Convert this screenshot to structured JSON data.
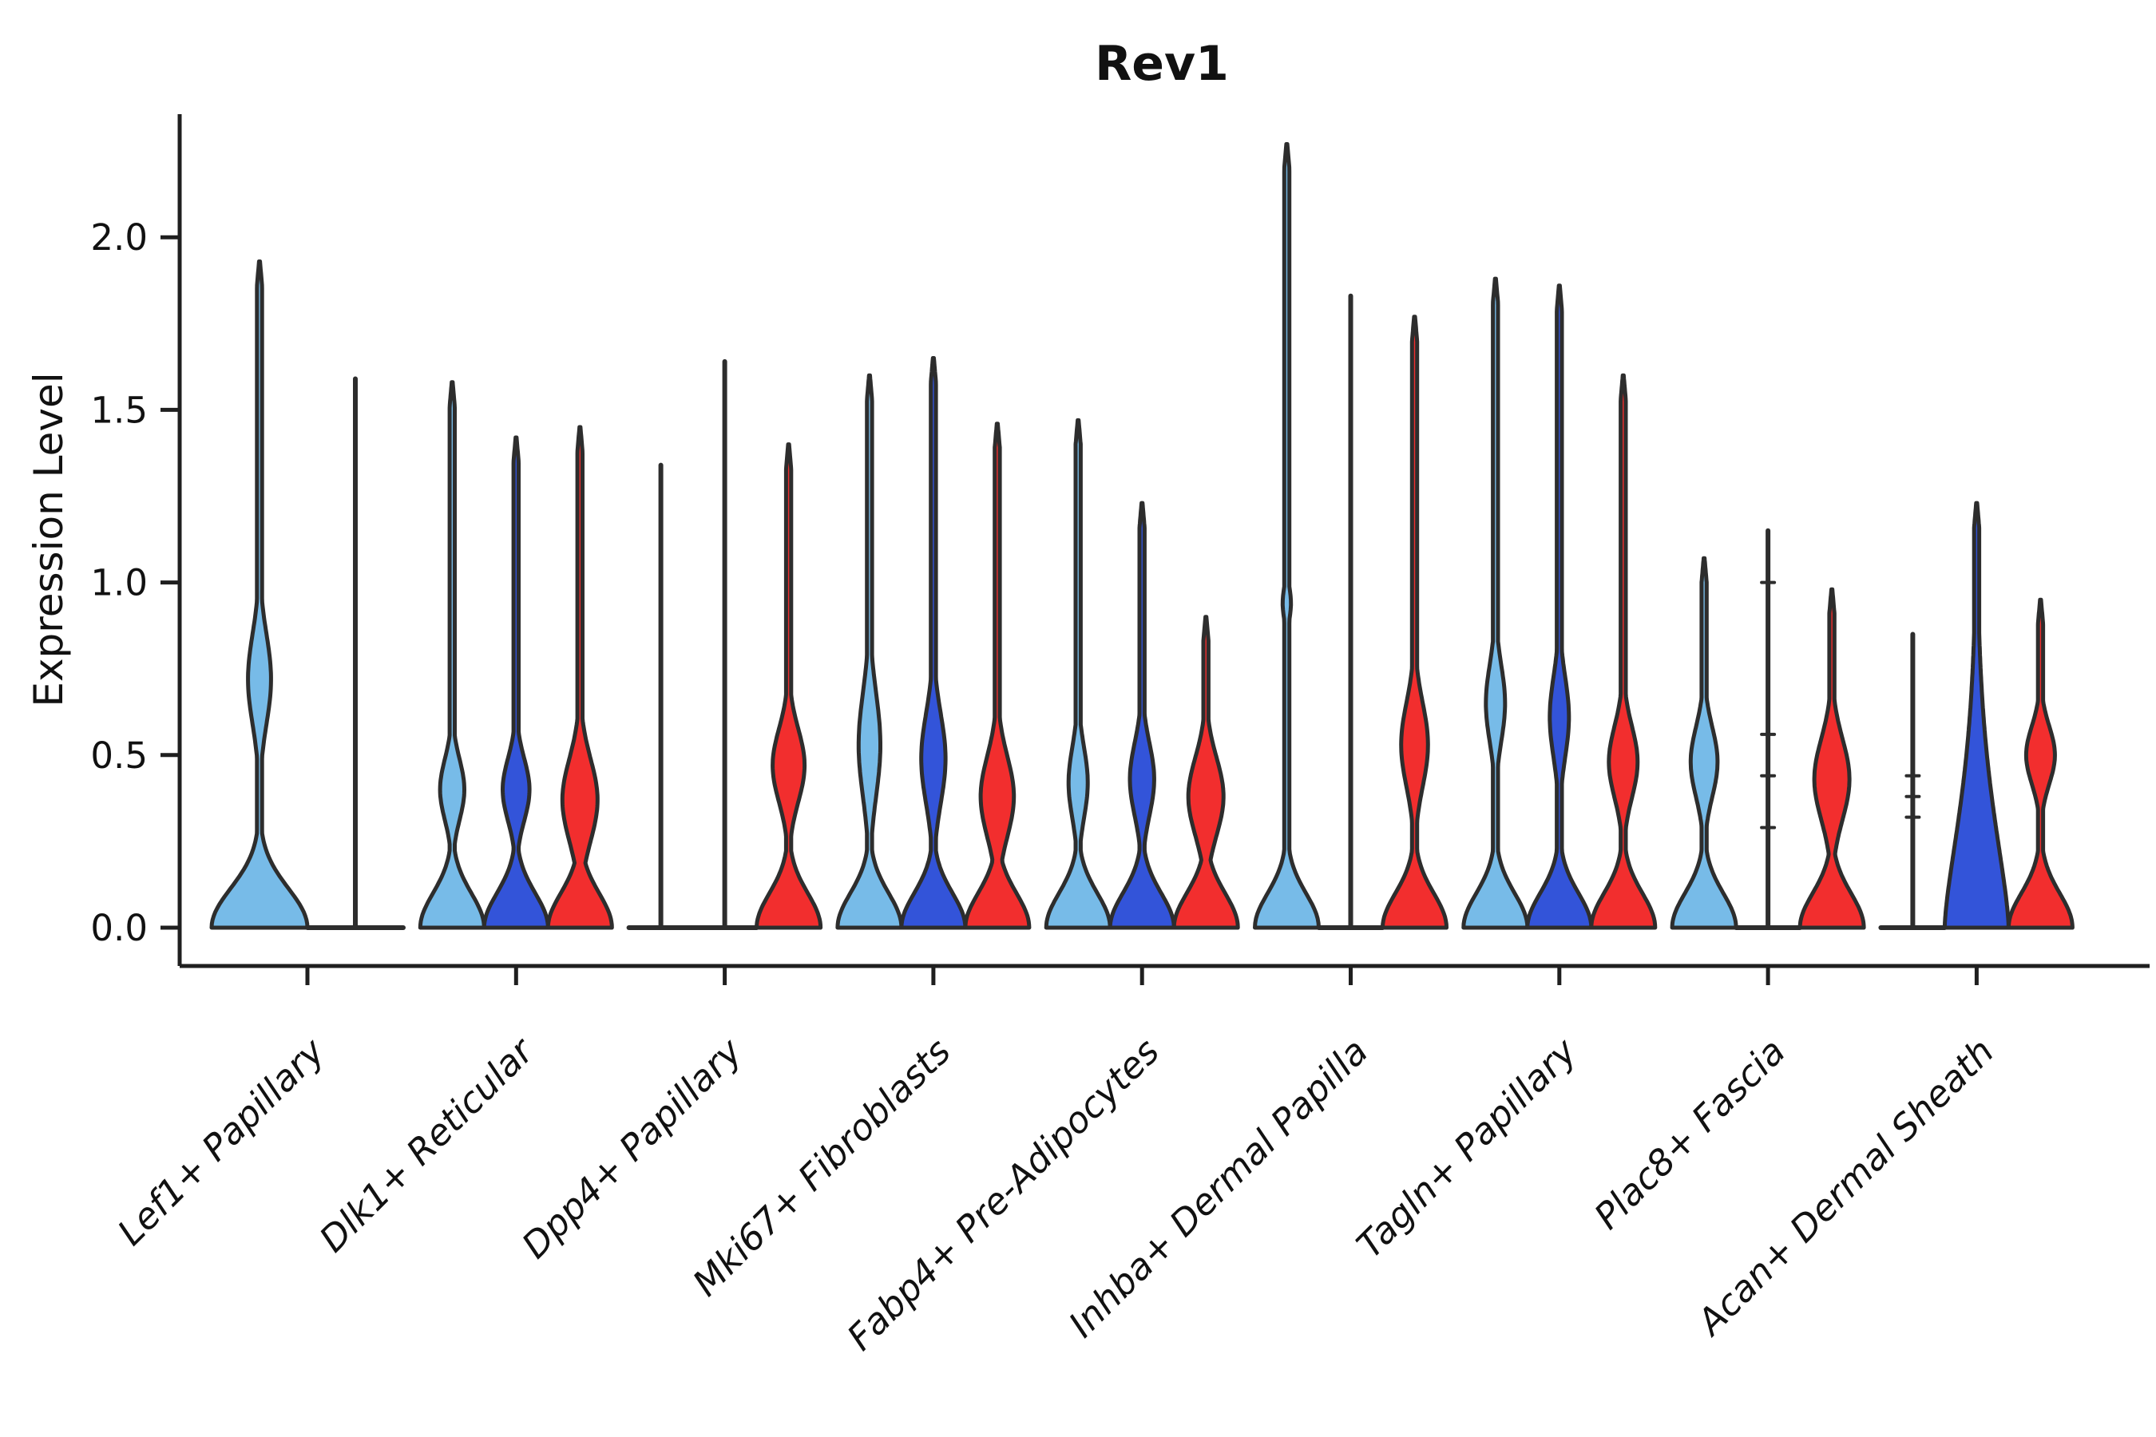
{
  "title": "Rev1",
  "ylabel": "Expression Level",
  "colors": {
    "skyblue": "#77BBE8",
    "royalblue": "#3354D9",
    "red": "#F22E2E",
    "outline": "#2D2D2D",
    "axis": "#1F1F1F",
    "text": "#111111"
  },
  "chart_data": {
    "type": "violin",
    "title": "Rev1",
    "xlabel": "",
    "ylabel": "Expression Level",
    "ylim": [
      -0.06,
      2.36
    ],
    "yticks": [
      "0.0",
      "0.5",
      "1.0",
      "1.5",
      "2.0"
    ],
    "ytick_values": [
      0.0,
      0.5,
      1.0,
      1.5,
      2.0
    ],
    "grid": false,
    "legend": "none",
    "categories": [
      "Lef1+ Papillary",
      "Dlk1+ Reticular",
      "Dpp4+ Papillary",
      "Mki67+ Fibroblasts",
      "Fabp4+ Pre-Adipocytes",
      "Inhba+ Dermal Papilla",
      "Tagln+ Papillary",
      "Plac8+ Fascia",
      "Acan+ Dermal Sheath"
    ],
    "groups": [
      {
        "label": "Lef1+ Papillary",
        "violins": [
          {
            "color": "skyblue",
            "offset": -60,
            "hw": 60,
            "shape": "violin",
            "max": 1.93,
            "bell": {
              "sigma": 0.16,
              "pow": 2
            },
            "bulge": {
              "lo": 0.45,
              "hi": 1.04,
              "peak": 0.72,
              "half": 0.24
            }
          },
          {
            "color": "royalblue",
            "offset": 60,
            "hw": 60,
            "shape": "line",
            "max": 1.59
          }
        ]
      },
      {
        "label": "Dlk1+ Reticular",
        "violins": [
          {
            "color": "skyblue",
            "offset": -80,
            "hw": 40,
            "shape": "violin",
            "max": 1.58,
            "bulge": {
              "lo": 0.19,
              "hi": 0.59,
              "peak": 0.4,
              "half": 0.38
            }
          },
          {
            "color": "royalblue",
            "offset": 0,
            "hw": 40,
            "shape": "violin",
            "max": 1.42,
            "bulge": {
              "lo": 0.19,
              "hi": 0.6,
              "peak": 0.4,
              "half": 0.42
            }
          },
          {
            "color": "red",
            "offset": 80,
            "hw": 40,
            "shape": "violin",
            "max": 1.45,
            "bulge": {
              "lo": 0.13,
              "hi": 0.67,
              "peak": 0.37,
              "half": 0.55
            }
          }
        ]
      },
      {
        "label": "Dpp4+ Papillary",
        "violins": [
          {
            "color": "skyblue",
            "offset": -80,
            "hw": 40,
            "shape": "line",
            "max": 1.34
          },
          {
            "color": "royalblue",
            "offset": 0,
            "hw": 40,
            "shape": "line",
            "max": 1.64
          },
          {
            "color": "red",
            "offset": 80,
            "hw": 40,
            "shape": "violin",
            "max": 1.4,
            "bulge": {
              "lo": 0.26,
              "hi": 0.74,
              "peak": 0.47,
              "half": 0.5
            }
          }
        ]
      },
      {
        "label": "Mki67+ Fibroblasts",
        "violins": [
          {
            "color": "skyblue",
            "offset": -80,
            "hw": 40,
            "shape": "violin",
            "max": 1.6,
            "bulge": {
              "lo": 0.24,
              "hi": 0.92,
              "peak": 0.53,
              "half": 0.34
            }
          },
          {
            "color": "royalblue",
            "offset": 0,
            "hw": 40,
            "shape": "violin",
            "max": 1.65,
            "bulge": {
              "lo": 0.21,
              "hi": 0.8,
              "peak": 0.49,
              "half": 0.38
            }
          },
          {
            "color": "red",
            "offset": 80,
            "hw": 40,
            "shape": "violin",
            "max": 1.46,
            "bulge": {
              "lo": 0.13,
              "hi": 0.66,
              "peak": 0.38,
              "half": 0.52
            }
          }
        ]
      },
      {
        "label": "Fabp4+ Pre-Adipocytes",
        "violins": [
          {
            "color": "skyblue",
            "offset": -80,
            "hw": 40,
            "shape": "violin",
            "max": 1.47,
            "bulge": {
              "lo": 0.17,
              "hi": 0.64,
              "peak": 0.42,
              "half": 0.3
            }
          },
          {
            "color": "royalblue",
            "offset": 0,
            "hw": 40,
            "shape": "violin",
            "max": 1.23,
            "bulge": {
              "lo": 0.19,
              "hi": 0.67,
              "peak": 0.43,
              "half": 0.38
            }
          },
          {
            "color": "red",
            "offset": 80,
            "hw": 40,
            "shape": "violin",
            "max": 0.9,
            "bulge": {
              "lo": 0.13,
              "hi": 0.64,
              "peak": 0.38,
              "half": 0.55
            }
          }
        ]
      },
      {
        "label": "Inhba+ Dermal Papilla",
        "violins": [
          {
            "color": "skyblue",
            "offset": -80,
            "hw": 40,
            "shape": "violin",
            "max": 2.27,
            "bulge": {
              "lo": 0.83,
              "hi": 1.05,
              "peak": 0.94,
              "half": 0.13
            }
          },
          {
            "color": "royalblue",
            "offset": 0,
            "hw": 40,
            "shape": "line",
            "max": 1.83
          },
          {
            "color": "red",
            "offset": 80,
            "hw": 40,
            "shape": "violin",
            "max": 1.77,
            "bulge": {
              "lo": 0.28,
              "hi": 0.83,
              "peak": 0.53,
              "half": 0.42
            }
          }
        ]
      },
      {
        "label": "Tagln+ Papillary",
        "violins": [
          {
            "color": "skyblue",
            "offset": -80,
            "hw": 40,
            "shape": "violin",
            "max": 1.88,
            "bulge": {
              "lo": 0.41,
              "hi": 0.91,
              "peak": 0.65,
              "half": 0.3
            }
          },
          {
            "color": "royalblue",
            "offset": 0,
            "hw": 40,
            "shape": "violin",
            "max": 1.86,
            "bulge": {
              "lo": 0.36,
              "hi": 0.89,
              "peak": 0.61,
              "half": 0.3
            }
          },
          {
            "color": "red",
            "offset": 80,
            "hw": 40,
            "shape": "violin",
            "max": 1.6,
            "bulge": {
              "lo": 0.25,
              "hi": 0.72,
              "peak": 0.48,
              "half": 0.45
            }
          }
        ]
      },
      {
        "label": "Plac8+ Fascia",
        "violins": [
          {
            "color": "skyblue",
            "offset": -80,
            "hw": 40,
            "shape": "violin",
            "max": 1.07,
            "bulge": {
              "lo": 0.24,
              "hi": 0.7,
              "peak": 0.48,
              "half": 0.42
            }
          },
          {
            "color": "royalblue",
            "offset": 0,
            "hw": 40,
            "shape": "line",
            "max": 1.15,
            "dashes": [
              1.0,
              0.56,
              0.44,
              0.29
            ]
          },
          {
            "color": "red",
            "offset": 80,
            "hw": 40,
            "shape": "violin",
            "max": 0.98,
            "bulge": {
              "lo": 0.15,
              "hi": 0.68,
              "peak": 0.43,
              "half": 0.55
            }
          }
        ]
      },
      {
        "label": "Acan+ Dermal Sheath",
        "violins": [
          {
            "color": "skyblue",
            "offset": -80,
            "hw": 40,
            "shape": "line",
            "max": 0.85,
            "dashes": [
              0.44,
              0.38,
              0.32
            ]
          },
          {
            "color": "royalblue",
            "offset": 0,
            "hw": 40,
            "shape": "wide",
            "max": 1.23,
            "bell": {
              "sigma": 0.46,
              "pow": 1.5
            }
          },
          {
            "color": "red",
            "offset": 80,
            "hw": 40,
            "shape": "violin",
            "max": 0.95,
            "bulge": {
              "lo": 0.31,
              "hi": 0.69,
              "peak": 0.5,
              "half": 0.45
            }
          }
        ]
      }
    ]
  }
}
